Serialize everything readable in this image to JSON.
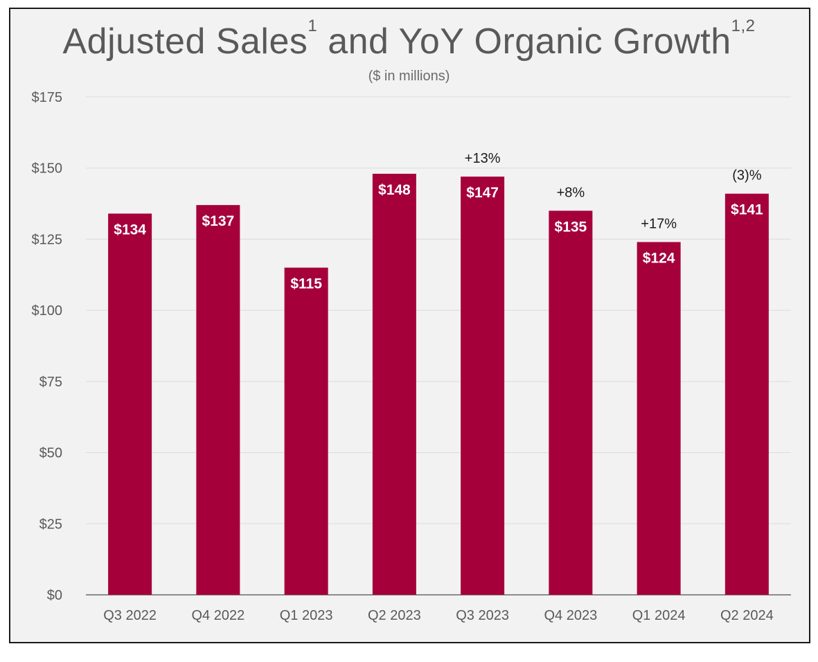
{
  "chart_data": {
    "type": "bar",
    "title": "Adjusted Sales",
    "title_sup1": "1",
    "title_part2": "and YoY Organic Growth",
    "title_sup2": "1,2",
    "subtitle": "($ in millions)",
    "categories": [
      "Q3 2022",
      "Q4 2022",
      "Q1 2023",
      "Q2 2023",
      "Q3 2023",
      "Q4 2023",
      "Q1 2024",
      "Q2 2024"
    ],
    "values": [
      134,
      137,
      115,
      148,
      147,
      135,
      124,
      141
    ],
    "value_labels": [
      "$134",
      "$137",
      "$115",
      "$148",
      "$147",
      "$135",
      "$124",
      "$141"
    ],
    "growth_labels": [
      "",
      "",
      "",
      "",
      "+13%",
      "+8%",
      "+17%",
      "(3)%"
    ],
    "ylim": [
      0,
      175
    ],
    "yticks": [
      0,
      25,
      50,
      75,
      100,
      125,
      150,
      175
    ],
    "ytick_labels": [
      "$0",
      "$25",
      "$50",
      "$75",
      "$100",
      "$125",
      "$150",
      "$175"
    ],
    "grid": true,
    "bar_color": "#a6003b"
  }
}
